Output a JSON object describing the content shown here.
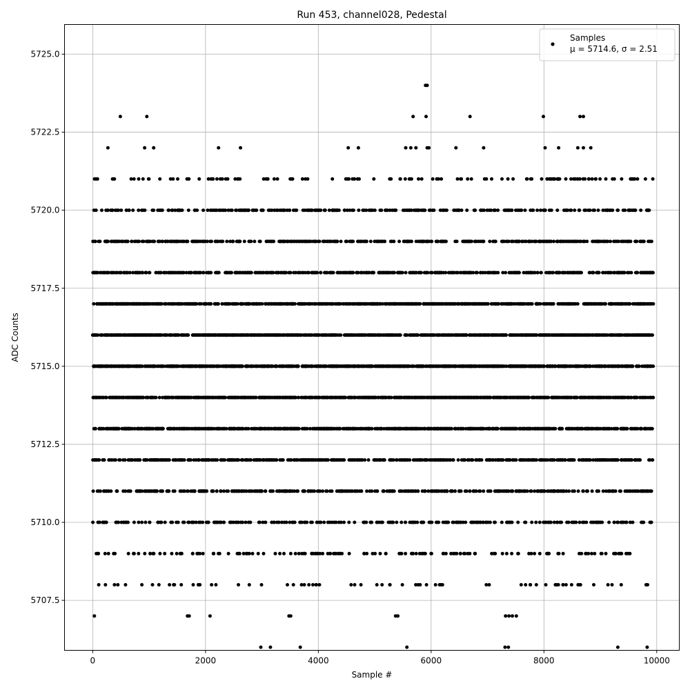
{
  "chart_data": {
    "type": "scatter",
    "title": "Run 453, channel028, Pedestal",
    "xlabel": "Sample #",
    "ylabel": "ADC Counts",
    "xlim": [
      -500,
      10400
    ],
    "ylim": [
      5705.9,
      5725.95
    ],
    "x_ticks": [
      0,
      2000,
      4000,
      6000,
      8000,
      10000
    ],
    "x_tick_labels": [
      "0",
      "2000",
      "4000",
      "6000",
      "8000",
      "10000"
    ],
    "y_ticks": [
      5707.5,
      5710.0,
      5712.5,
      5715.0,
      5717.5,
      5720.0,
      5722.5,
      5725.0
    ],
    "y_tick_labels": [
      "5707.5",
      "5710.0",
      "5712.5",
      "5715.0",
      "5717.5",
      "5720.0",
      "5722.5",
      "5725.0"
    ],
    "grid": true,
    "legend_position": "top-right",
    "legend": {
      "label": "Samples",
      "stats_label": "μ = 5714.6, σ = 2.51"
    },
    "marker_color": "#000000",
    "series": [
      {
        "name": "Samples",
        "x_range": [
          0,
          9940
        ],
        "mean": 5714.6,
        "std": 2.51,
        "points": [
          {
            "x": 30,
            "y": 5707
          },
          {
            "x": 1680,
            "y": 5707
          },
          {
            "x": 1710,
            "y": 5707
          },
          {
            "x": 2080,
            "y": 5707
          },
          {
            "x": 3480,
            "y": 5707
          },
          {
            "x": 3510,
            "y": 5707
          },
          {
            "x": 5370,
            "y": 5707
          },
          {
            "x": 5410,
            "y": 5707
          },
          {
            "x": 7320,
            "y": 5707
          },
          {
            "x": 7380,
            "y": 5707
          },
          {
            "x": 7440,
            "y": 5707
          },
          {
            "x": 7510,
            "y": 5707
          },
          {
            "x": 2980,
            "y": 5706
          },
          {
            "x": 3150,
            "y": 5706
          },
          {
            "x": 3680,
            "y": 5706
          },
          {
            "x": 5570,
            "y": 5706
          },
          {
            "x": 7310,
            "y": 5706
          },
          {
            "x": 7370,
            "y": 5706
          },
          {
            "x": 9310,
            "y": 5706
          },
          {
            "x": 9830,
            "y": 5706
          },
          {
            "x": 490,
            "y": 5723
          },
          {
            "x": 960,
            "y": 5723
          },
          {
            "x": 5680,
            "y": 5723
          },
          {
            "x": 5910,
            "y": 5723
          },
          {
            "x": 6690,
            "y": 5723
          },
          {
            "x": 7990,
            "y": 5723
          },
          {
            "x": 8640,
            "y": 5723
          },
          {
            "x": 8700,
            "y": 5723
          },
          {
            "x": 5900,
            "y": 5724
          },
          {
            "x": 5930,
            "y": 5724
          },
          {
            "x": 270,
            "y": 5722
          },
          {
            "x": 920,
            "y": 5722
          },
          {
            "x": 1080,
            "y": 5722
          },
          {
            "x": 2230,
            "y": 5722
          },
          {
            "x": 2620,
            "y": 5722
          },
          {
            "x": 4530,
            "y": 5722
          },
          {
            "x": 4710,
            "y": 5722
          },
          {
            "x": 5550,
            "y": 5722
          },
          {
            "x": 5640,
            "y": 5722
          },
          {
            "x": 5730,
            "y": 5722
          },
          {
            "x": 5930,
            "y": 5722
          },
          {
            "x": 5960,
            "y": 5722
          },
          {
            "x": 6440,
            "y": 5722
          },
          {
            "x": 6930,
            "y": 5722
          },
          {
            "x": 8020,
            "y": 5722
          },
          {
            "x": 8260,
            "y": 5722
          },
          {
            "x": 8600,
            "y": 5722
          },
          {
            "x": 8700,
            "y": 5722
          },
          {
            "x": 8830,
            "y": 5722
          }
        ]
      }
    ]
  }
}
